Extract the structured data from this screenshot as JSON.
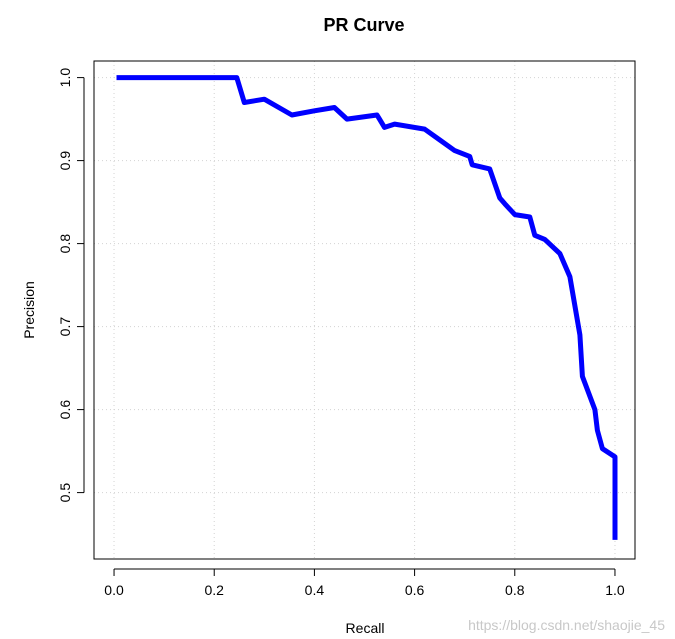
{
  "chart_data": {
    "type": "line",
    "title": "PR Curve",
    "xlabel": "Recall",
    "ylabel": "Precision",
    "xlim": [
      -0.04,
      1.04
    ],
    "ylim": [
      0.42,
      1.02
    ],
    "grid": true,
    "x_ticks": [
      0.0,
      0.2,
      0.4,
      0.6,
      0.8,
      1.0
    ],
    "x_tick_labels": [
      "0.0",
      "0.2",
      "0.4",
      "0.6",
      "0.8",
      "1.0"
    ],
    "y_ticks": [
      0.5,
      0.6,
      0.7,
      0.8,
      0.9,
      1.0
    ],
    "y_tick_labels": [
      "0.5",
      "0.6",
      "0.7",
      "0.8",
      "0.9",
      "1.0"
    ],
    "series": [
      {
        "color": "#0000ff",
        "x": [
          0.005,
          0.245,
          0.26,
          0.3,
          0.355,
          0.4,
          0.44,
          0.465,
          0.525,
          0.54,
          0.56,
          0.62,
          0.65,
          0.68,
          0.71,
          0.715,
          0.75,
          0.77,
          0.78,
          0.8,
          0.83,
          0.84,
          0.86,
          0.89,
          0.91,
          0.93,
          0.935,
          0.94,
          0.96,
          0.965,
          0.975,
          1.0,
          1.0
        ],
        "y": [
          1.0,
          1.0,
          0.97,
          0.974,
          0.955,
          0.96,
          0.964,
          0.95,
          0.955,
          0.94,
          0.944,
          0.938,
          0.925,
          0.912,
          0.905,
          0.895,
          0.89,
          0.855,
          0.848,
          0.835,
          0.832,
          0.81,
          0.805,
          0.788,
          0.76,
          0.69,
          0.64,
          0.632,
          0.6,
          0.575,
          0.553,
          0.543,
          0.443
        ]
      }
    ]
  },
  "watermark": "https://blog.csdn.net/shaojie_45"
}
